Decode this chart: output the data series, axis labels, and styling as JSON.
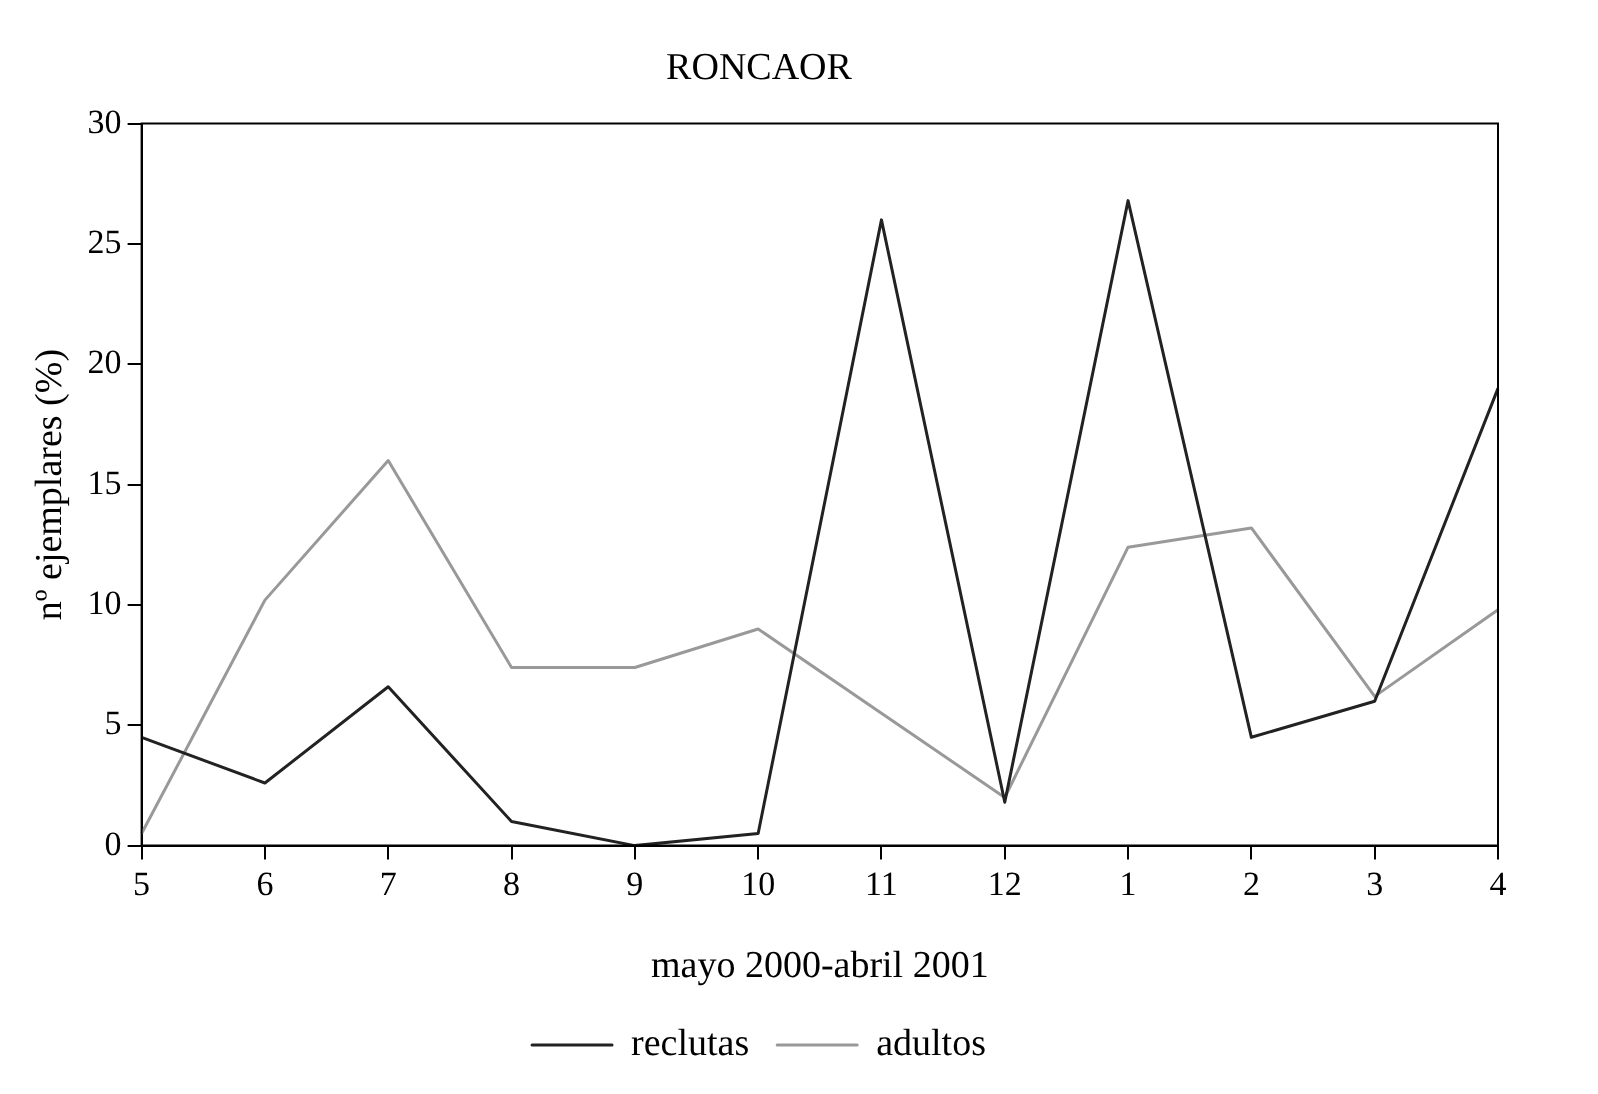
{
  "chart_data": {
    "type": "line",
    "title": "RONCAOR",
    "xlabel": "mayo 2000-abril 2001",
    "ylabel": "nº ejemplares (%)",
    "categories": [
      "5",
      "6",
      "7",
      "8",
      "9",
      "10",
      "11",
      "12",
      "1",
      "2",
      "3",
      "4"
    ],
    "ylim": [
      0,
      30
    ],
    "yticks": [
      0,
      5,
      10,
      15,
      20,
      25,
      30
    ],
    "grid": false,
    "legend": "bottom",
    "marker": "none",
    "line_style": "solid",
    "series": [
      {
        "name": "reclutas",
        "color": "#222222",
        "values": [
          4.5,
          2.6,
          6.6,
          1.0,
          0.0,
          0.5,
          26,
          1.8,
          26.8,
          4.5,
          6.0,
          19
        ]
      },
      {
        "name": "adultos",
        "color": "#999999",
        "values": [
          0.5,
          10.2,
          16,
          7.4,
          7.4,
          9.0,
          5.5,
          2.0,
          12.4,
          13.2,
          6.2,
          9.8
        ]
      }
    ]
  }
}
